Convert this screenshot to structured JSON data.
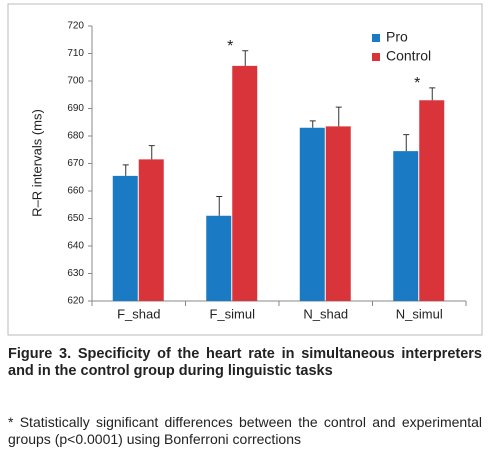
{
  "chart_data": {
    "type": "bar",
    "y_label": "R–R intervals (ms)",
    "categories": [
      "F_shad",
      "F_simul",
      "N_shad",
      "N_simul"
    ],
    "series": [
      {
        "name": "Pro",
        "color": "#1a7bc4",
        "values": [
          665.5,
          651,
          683,
          674.5
        ],
        "errors": [
          4,
          7,
          2.5,
          6
        ]
      },
      {
        "name": "Control",
        "color": "#d9343a",
        "values": [
          671.5,
          705.5,
          683.5,
          693
        ],
        "errors": [
          5,
          5.5,
          7,
          4.5
        ]
      }
    ],
    "ylim": [
      620,
      720
    ],
    "yticks": [
      620,
      630,
      640,
      650,
      660,
      670,
      680,
      690,
      700,
      710,
      720
    ],
    "legend": "upper right",
    "annotations": [
      {
        "text": "*",
        "category": 1,
        "series": 1
      },
      {
        "text": "*",
        "category": 3,
        "series": 1
      }
    ]
  },
  "caption": {
    "title": "Figure 3. Specificity of the heart rate in simultaneous interpreters and in the control group during linguistic tasks",
    "note": "* Statistically significant differences between the control and experimental groups (p<0.0001) using Bonferroni corrections"
  }
}
